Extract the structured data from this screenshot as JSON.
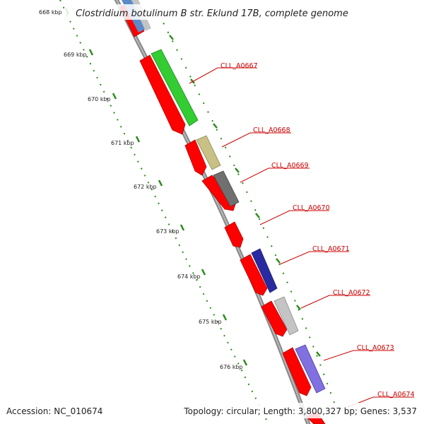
{
  "title": "Clostridium botulinum B str. Eklund 17B, complete genome",
  "footer": {
    "accession": "Accession: NC_010674",
    "topology": "Topology: circular; Length: 3,800,327 bp; Genes: 3,537"
  },
  "scale_labels": [
    "668 kbp",
    "669 kbp",
    "670 kbp",
    "671 kbp",
    "672 kbp",
    "673 kbp",
    "674 kbp",
    "675 kbp",
    "676 kbp"
  ],
  "gene_labels": [
    "CLL_A0667",
    "CLL_A0668",
    "CLL_A0669",
    "CLL_A0670",
    "CLL_A0671",
    "CLL_A0672",
    "CLL_A0673",
    "CLL_A0674"
  ],
  "colors": {
    "backbone": "#8a8a8a",
    "gene": "#ff0000",
    "label": "#cc0000",
    "tick": "#2a8a1a",
    "feature_green": "#33cc33",
    "feature_olive": "#c8c084",
    "feature_darkgray": "#707070",
    "feature_navy": "#2a2aa0",
    "feature_lightgray": "#c4c4c4",
    "feature_purple": "#8070e0",
    "feature_steelblue": "#5a8ac8"
  }
}
